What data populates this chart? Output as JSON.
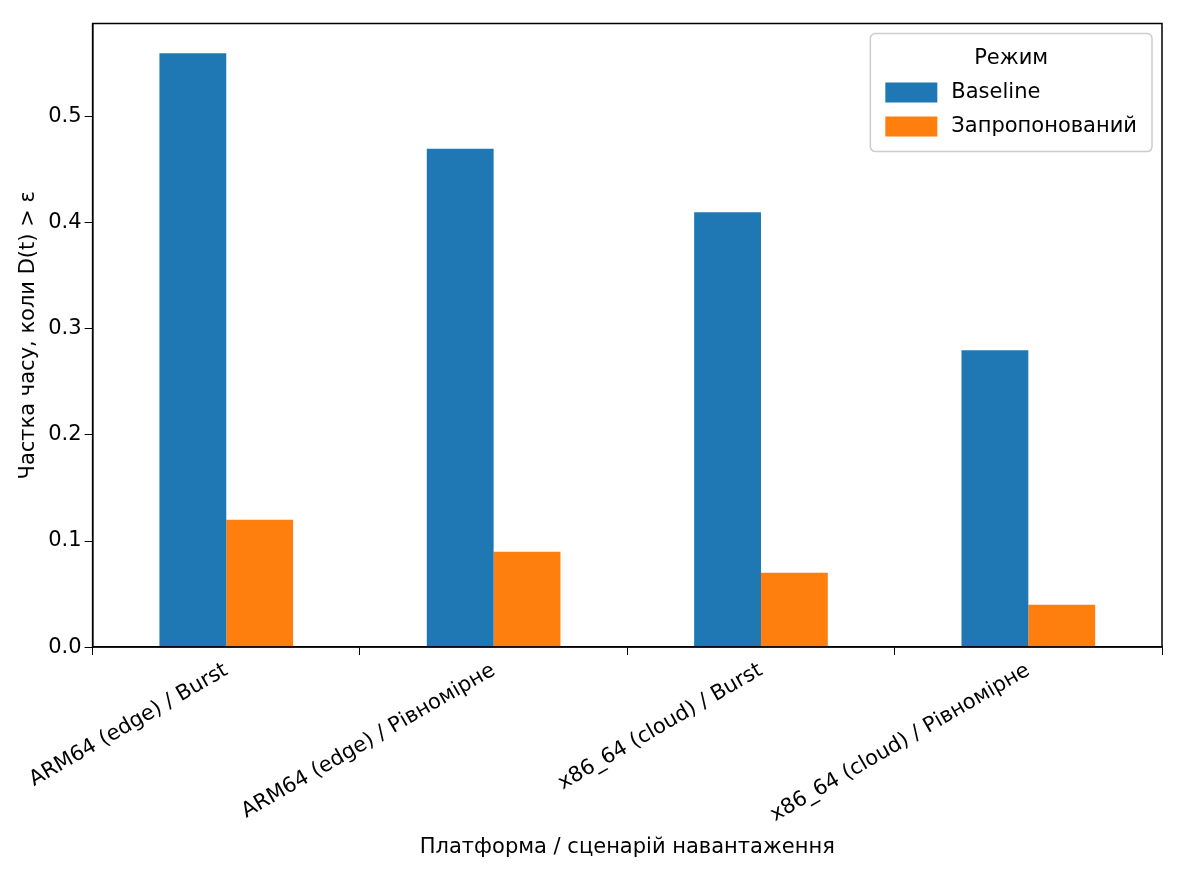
{
  "chart_data": {
    "type": "bar",
    "xlabel": "Платформа / сценарій навантаження",
    "ylabel": "Частка часу, коли D(t) > ε",
    "legend_title": "Режим",
    "categories": [
      "ARM64 (edge) / Burst",
      "ARM64 (edge) / Рівномірне",
      "x86_64 (cloud) / Burst",
      "x86_64 (cloud) / Рівномірне"
    ],
    "series": [
      {
        "name": "Baseline",
        "color": "#1f77b4",
        "values": [
          0.56,
          0.47,
          0.41,
          0.28
        ]
      },
      {
        "name": "Запропонований",
        "color": "#ff7f0e",
        "values": [
          0.12,
          0.09,
          0.07,
          0.04
        ]
      }
    ],
    "ylim": [
      0,
      0.588
    ],
    "yticks": [
      {
        "value": 0,
        "label": "0.0"
      },
      {
        "value": 0.1,
        "label": "0.1"
      },
      {
        "value": 0.2,
        "label": "0.2"
      },
      {
        "value": 0.3,
        "label": "0.3"
      },
      {
        "value": 0.4,
        "label": "0.4"
      },
      {
        "value": 0.5,
        "label": "0.5"
      }
    ],
    "grid": false,
    "legend": "top right"
  }
}
